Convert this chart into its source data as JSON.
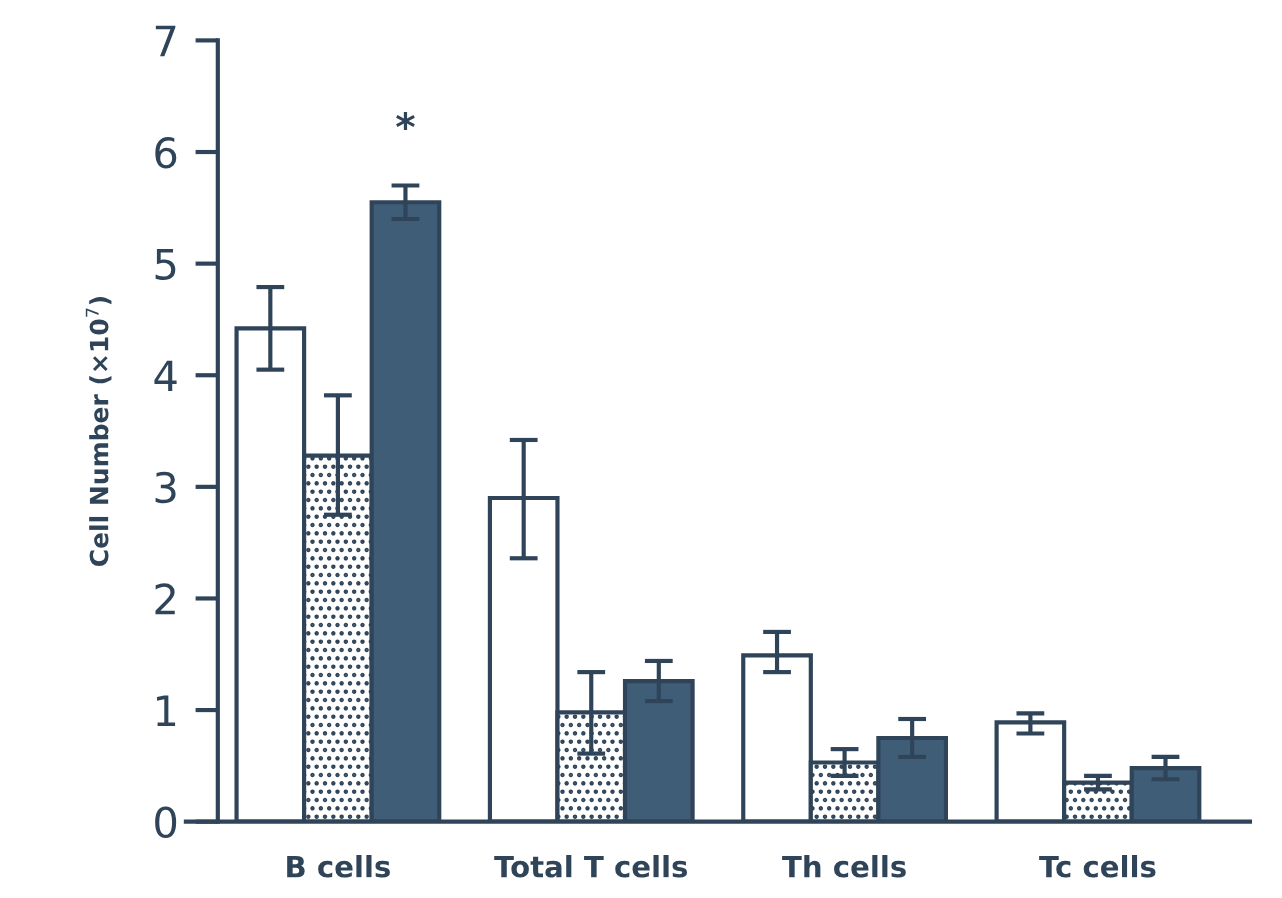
{
  "chart_data": {
    "type": "bar",
    "ylabel": "Cell Number (×10$^{7}$)",
    "categories": [
      "B cells",
      "Total T cells",
      "Th cells",
      "Tc cells"
    ],
    "series": [
      {
        "color": "#ffffff",
        "values": [
          4.42,
          2.9,
          1.49,
          0.89
        ],
        "errors": [
          [
            4.05,
            4.79
          ],
          [
            2.36,
            3.42
          ],
          [
            1.34,
            1.7
          ],
          [
            0.79,
            0.97
          ]
        ]
      },
      {
        "color": "#2f4458",
        "values": [
          3.28,
          0.98,
          0.53,
          0.35
        ],
        "errors": [
          [
            2.75,
            3.82
          ],
          [
            0.61,
            1.34
          ],
          [
            0.41,
            0.65
          ],
          [
            0.29,
            0.41
          ]
        ]
      },
      {
        "color": "#405d78",
        "values": [
          5.55,
          1.26,
          0.75,
          0.48
        ],
        "errors": [
          [
            5.4,
            5.7
          ],
          [
            1.08,
            1.44
          ],
          [
            0.58,
            0.92
          ],
          [
            0.38,
            0.58
          ]
        ]
      }
    ],
    "annotations": [
      "*"
    ],
    "ylim": [
      0,
      7
    ],
    "yticks": [
      0,
      1,
      2,
      3,
      4,
      5,
      6,
      7
    ],
    "grid": false,
    "legend": false
  }
}
